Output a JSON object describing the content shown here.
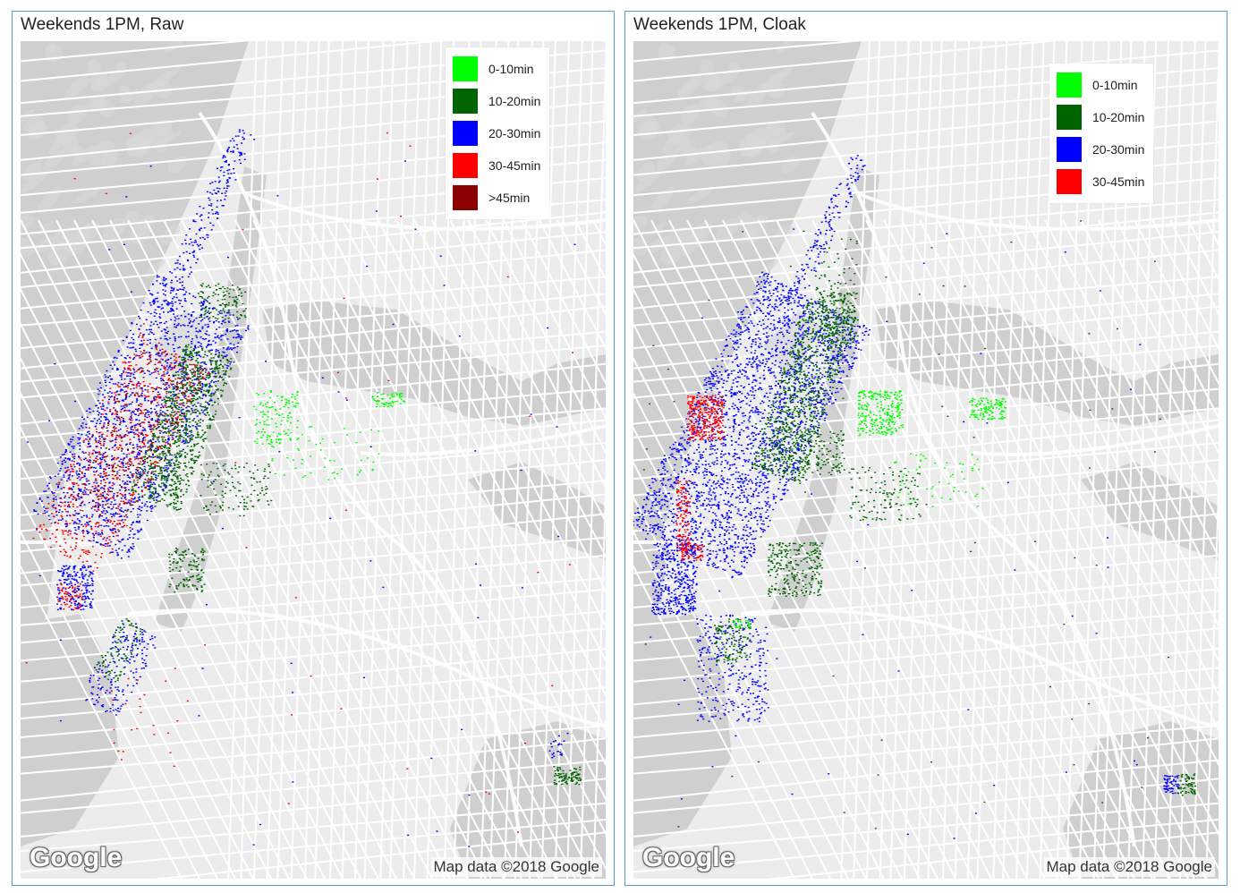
{
  "colors": {
    "0-10min": "#00ff00",
    "10-20min": "#006400",
    "20-30min": "#0000ff",
    "30-45min": "#ff0000",
    ">45min": "#8b0000",
    "water": "#cfcfcf",
    "land": "#ececec",
    "street": "#ffffff"
  },
  "panels": [
    {
      "title": "Weekends 1PM, Raw",
      "legend": [
        {
          "label": "0-10min",
          "color": "#00ff00"
        },
        {
          "label": "10-20min",
          "color": "#006400"
        },
        {
          "label": "20-30min",
          "color": "#0000ff"
        },
        {
          "label": "30-45min",
          "color": "#ff0000"
        },
        {
          "label": ">45min",
          "color": "#8b0000"
        }
      ],
      "logo": "Google",
      "attribution": "Map data ©2018 Google"
    },
    {
      "title": "Weekends 1PM, Cloak",
      "legend": [
        {
          "label": "0-10min",
          "color": "#00ff00"
        },
        {
          "label": "10-20min",
          "color": "#006400"
        },
        {
          "label": "20-30min",
          "color": "#0000ff"
        },
        {
          "label": "30-45min",
          "color": "#ff0000"
        }
      ],
      "logo": "Google",
      "attribution": "Map data ©2018 Google"
    }
  ]
}
